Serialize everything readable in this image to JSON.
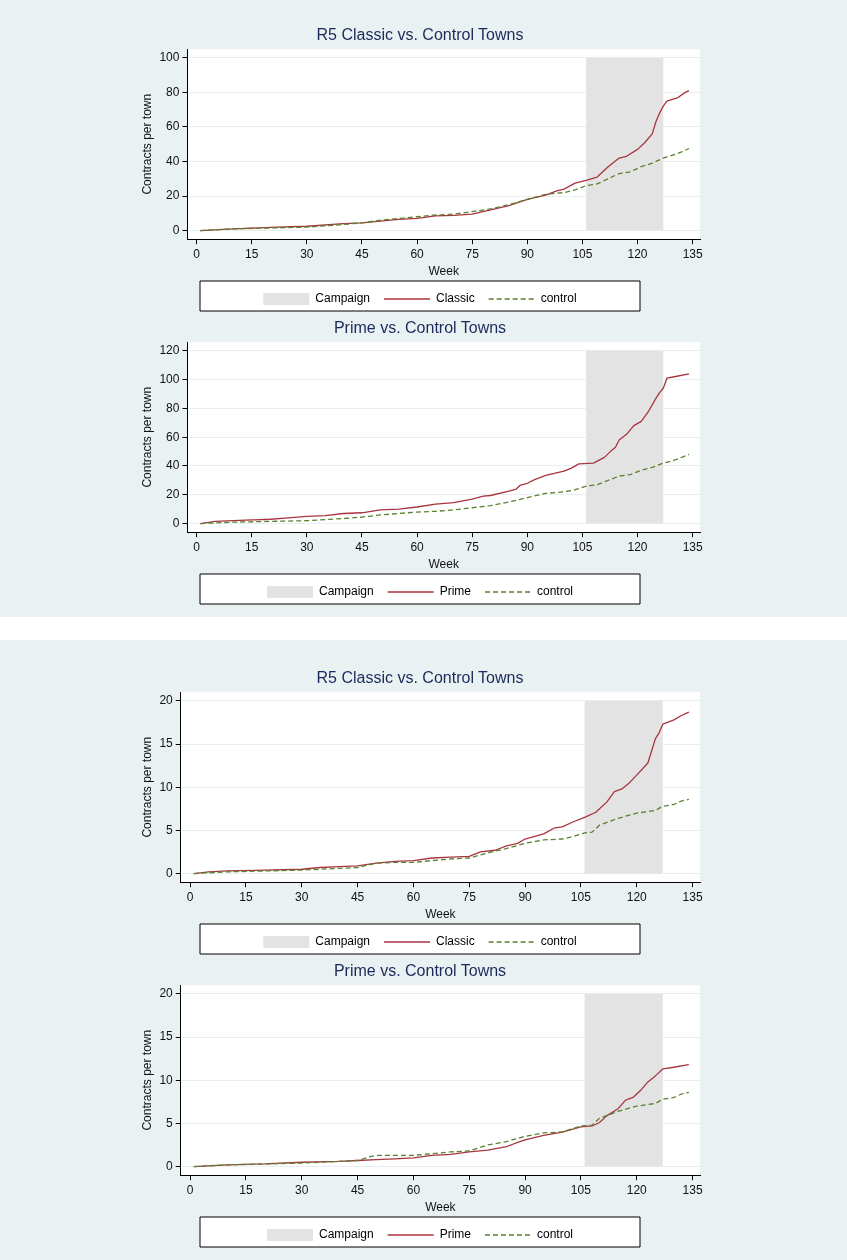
{
  "chart_data": [
    {
      "type": "line",
      "title": "R5 Classic vs. Control Towns",
      "xlabel": "Week",
      "ylabel": "Contracts per town",
      "xlim": [
        -2.5,
        137
      ],
      "xticks": [
        0,
        15,
        30,
        45,
        60,
        75,
        90,
        105,
        120,
        135
      ],
      "ylim": [
        -5,
        105
      ],
      "yticks": [
        0,
        20,
        40,
        60,
        80,
        100
      ],
      "grid": "y",
      "legend": "bottom",
      "bands": [
        {
          "axis": "x",
          "from": 106,
          "to": 127,
          "label": "Campaign",
          "color": "#e3e3e3"
        }
      ],
      "series": [
        {
          "name": "Classic",
          "color": "#a8343f",
          "line_style": "solid",
          "x": [
            1,
            10,
            20,
            30,
            40,
            45,
            50,
            55,
            60,
            65,
            70,
            75,
            80,
            85,
            90,
            95,
            98,
            100,
            103,
            106,
            109,
            112,
            115,
            117,
            120,
            122,
            124,
            125,
            126,
            127,
            128,
            131,
            133,
            134
          ],
          "values": [
            0,
            1,
            1.8,
            2.5,
            4,
            4.5,
            5.5,
            6.5,
            7,
            8.5,
            8.8,
            9.5,
            12,
            14.5,
            18,
            20.5,
            23,
            24,
            27.5,
            29,
            31,
            37,
            42,
            43,
            47,
            51,
            56,
            63,
            68,
            72,
            75,
            77,
            80,
            81
          ]
        },
        {
          "name": "control",
          "color": "#5a8030",
          "line_style": "dashed",
          "x": [
            1,
            10,
            20,
            30,
            40,
            45,
            50,
            55,
            60,
            65,
            70,
            75,
            80,
            85,
            90,
            95,
            100,
            103,
            106,
            109,
            112,
            115,
            118,
            121,
            124,
            127,
            130,
            132,
            134
          ],
          "values": [
            0,
            1,
            1.5,
            2,
            3.5,
            4.5,
            6,
            7,
            8,
            9,
            9.5,
            11,
            12.5,
            15,
            18,
            21,
            22,
            23.5,
            26,
            27,
            30,
            33,
            34,
            37,
            39,
            42,
            44,
            45.5,
            47.5
          ]
        }
      ]
    },
    {
      "type": "line",
      "title": "Prime vs. Control Towns",
      "xlabel": "Week",
      "ylabel": "Contracts per town",
      "xlim": [
        -2.5,
        137
      ],
      "xticks": [
        0,
        15,
        30,
        45,
        60,
        75,
        90,
        105,
        120,
        135
      ],
      "ylim": [
        -6,
        126
      ],
      "yticks": [
        0,
        20,
        40,
        60,
        80,
        100,
        120
      ],
      "grid": "y",
      "legend": "bottom",
      "bands": [
        {
          "axis": "x",
          "from": 106,
          "to": 127,
          "label": "Campaign",
          "color": "#e3e3e3"
        }
      ],
      "series": [
        {
          "name": "Prime",
          "color": "#a8343f",
          "line_style": "solid",
          "x": [
            1,
            5,
            10,
            15,
            20,
            25,
            30,
            35,
            40,
            45,
            50,
            55,
            60,
            65,
            70,
            75,
            78,
            80,
            85,
            87,
            88,
            90,
            92,
            95,
            100,
            102,
            104,
            108,
            111,
            113,
            114,
            115,
            117,
            119,
            121,
            123,
            125,
            126,
            127,
            128,
            130,
            134
          ],
          "values": [
            0,
            1.5,
            2,
            2.5,
            3,
            4,
            5,
            5.5,
            7,
            7.5,
            9.5,
            10,
            11.5,
            13.5,
            14.5,
            17,
            19,
            19.5,
            22.5,
            24,
            26.5,
            28,
            30.5,
            33.5,
            36.5,
            38.5,
            41.5,
            42,
            46,
            51,
            53,
            58,
            62,
            68,
            71,
            78,
            87,
            91,
            94,
            101,
            102,
            104
          ]
        },
        {
          "name": "control",
          "color": "#5a8030",
          "line_style": "dashed",
          "x": [
            1,
            10,
            20,
            30,
            40,
            45,
            50,
            55,
            60,
            65,
            70,
            75,
            80,
            85,
            90,
            95,
            100,
            103,
            106,
            109,
            112,
            115,
            118,
            121,
            124,
            127,
            130,
            132,
            134
          ],
          "values": [
            0,
            1,
            1.5,
            2,
            3.5,
            4.5,
            6,
            7,
            8,
            8.5,
            9.5,
            11,
            12.5,
            15,
            18,
            21,
            22,
            23.5,
            26,
            27,
            30,
            33,
            34,
            37,
            39,
            42,
            44,
            46,
            48
          ]
        }
      ]
    },
    {
      "type": "line",
      "title": "R5 Classic vs. Control Towns",
      "xlabel": "Week",
      "ylabel": "Contracts per town",
      "xlim": [
        -2.5,
        137
      ],
      "xticks": [
        0,
        15,
        30,
        45,
        60,
        75,
        90,
        105,
        120,
        135
      ],
      "ylim": [
        -1,
        21
      ],
      "yticks": [
        0,
        5,
        10,
        15,
        20
      ],
      "grid": "y",
      "legend": "bottom",
      "bands": [
        {
          "axis": "x",
          "from": 106,
          "to": 127,
          "label": "Campaign",
          "color": "#e3e3e3"
        }
      ],
      "series": [
        {
          "name": "Classic",
          "color": "#a8343f",
          "line_style": "solid",
          "x": [
            1,
            5,
            10,
            20,
            30,
            35,
            40,
            45,
            50,
            55,
            60,
            65,
            70,
            75,
            78,
            82,
            85,
            88,
            90,
            95,
            98,
            100,
            103,
            106,
            109,
            112,
            114,
            116,
            118,
            120,
            123,
            125,
            126,
            127,
            130,
            132,
            134
          ],
          "values": [
            0,
            0.2,
            0.3,
            0.4,
            0.5,
            0.7,
            0.8,
            0.9,
            1.2,
            1.4,
            1.5,
            1.8,
            1.9,
            2,
            2.5,
            2.7,
            3.2,
            3.5,
            4,
            4.6,
            5.3,
            5.4,
            6,
            6.5,
            7.1,
            8.3,
            9.5,
            9.8,
            10.5,
            11.4,
            12.8,
            15.6,
            16.3,
            17.3,
            17.8,
            18.3,
            18.7
          ]
        },
        {
          "name": "control",
          "color": "#5a8030",
          "line_style": "dashed",
          "x": [
            1,
            10,
            20,
            30,
            40,
            45,
            50,
            55,
            60,
            65,
            70,
            75,
            80,
            85,
            90,
            95,
            100,
            103,
            106,
            108,
            110,
            115,
            120,
            125,
            127,
            130,
            132,
            134
          ],
          "values": [
            0,
            0.2,
            0.3,
            0.4,
            0.6,
            0.7,
            1.2,
            1.3,
            1.3,
            1.5,
            1.7,
            1.8,
            2.4,
            2.9,
            3.5,
            3.9,
            4,
            4.3,
            4.7,
            4.8,
            5.6,
            6.4,
            7,
            7.3,
            7.8,
            8,
            8.4,
            8.6
          ]
        }
      ]
    },
    {
      "type": "line",
      "title": "Prime vs. Control Towns",
      "xlabel": "Week",
      "ylabel": "Contracts per town",
      "xlim": [
        -2.5,
        137
      ],
      "xticks": [
        0,
        15,
        30,
        45,
        60,
        75,
        90,
        105,
        120,
        135
      ],
      "ylim": [
        -1,
        21
      ],
      "yticks": [
        0,
        5,
        10,
        15,
        20
      ],
      "grid": "y",
      "legend": "bottom",
      "bands": [
        {
          "axis": "x",
          "from": 106,
          "to": 127,
          "label": "Campaign",
          "color": "#e3e3e3"
        }
      ],
      "series": [
        {
          "name": "Prime",
          "color": "#a8343f",
          "line_style": "solid",
          "x": [
            1,
            10,
            20,
            30,
            40,
            45,
            50,
            55,
            60,
            65,
            70,
            75,
            80,
            85,
            88,
            90,
            95,
            100,
            105,
            108,
            110,
            112,
            115,
            117,
            119,
            121,
            123,
            125,
            127,
            130,
            134
          ],
          "values": [
            0,
            0.2,
            0.3,
            0.5,
            0.6,
            0.7,
            0.8,
            0.9,
            1,
            1.3,
            1.4,
            1.7,
            1.9,
            2.3,
            2.8,
            3.1,
            3.6,
            4,
            4.6,
            4.7,
            5.1,
            5.9,
            6.7,
            7.7,
            8,
            8.8,
            9.8,
            10.5,
            11.3,
            11.5,
            11.8
          ]
        },
        {
          "name": "control",
          "color": "#5a8030",
          "line_style": "dashed",
          "x": [
            1,
            10,
            20,
            30,
            40,
            45,
            48,
            50,
            55,
            60,
            65,
            70,
            75,
            80,
            85,
            90,
            95,
            100,
            105,
            108,
            110,
            115,
            120,
            125,
            127,
            130,
            132,
            134
          ],
          "values": [
            0,
            0.2,
            0.3,
            0.4,
            0.6,
            0.7,
            1.1,
            1.3,
            1.3,
            1.3,
            1.5,
            1.7,
            1.8,
            2.5,
            2.9,
            3.5,
            3.9,
            4,
            4.7,
            4.8,
            5.6,
            6.4,
            7,
            7.3,
            7.8,
            8,
            8.4,
            8.6
          ]
        }
      ]
    }
  ]
}
